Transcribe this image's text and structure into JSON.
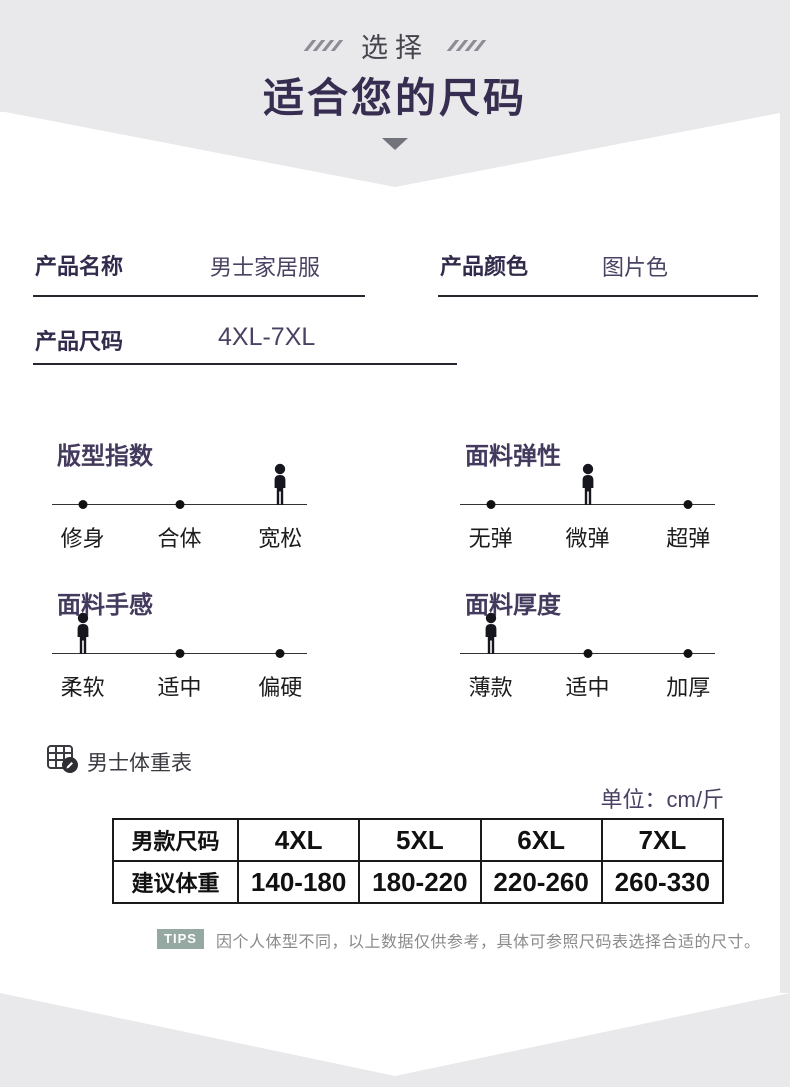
{
  "header": {
    "select_label": "选择",
    "title": "适合您的尺码"
  },
  "product": {
    "rows": [
      {
        "label": "产品名称",
        "value": "男士家居服"
      },
      {
        "label": "产品颜色",
        "value": "图片色"
      },
      {
        "label": "产品尺码",
        "value": "4XL-7XL"
      }
    ]
  },
  "indicators": [
    {
      "title": "版型指数",
      "options": [
        "修身",
        "合体",
        "宽松"
      ],
      "active_index": 2
    },
    {
      "title": "面料弹性",
      "options": [
        "无弹",
        "微弹",
        "超弹"
      ],
      "active_index": 1
    },
    {
      "title": "面料手感",
      "options": [
        "柔软",
        "适中",
        "偏硬"
      ],
      "active_index": 0
    },
    {
      "title": "面料厚度",
      "options": [
        "薄款",
        "适中",
        "加厚"
      ],
      "active_index": 0
    }
  ],
  "weight_table": {
    "section_label": "男士体重表",
    "unit_label": "单位：cm/斤",
    "header_row": {
      "label": "男款尺码",
      "values": [
        "4XL",
        "5XL",
        "6XL",
        "7XL"
      ]
    },
    "weight_row": {
      "label": "建议体重",
      "values": [
        "140-180",
        "180-220",
        "220-260",
        "260-330"
      ]
    }
  },
  "tips": {
    "badge": "TIPS",
    "text": "因个人体型不同，以上数据仅供参考，具体可参照尺码表选择合适的尺寸。"
  },
  "colors": {
    "page_background": "#e9e8ea",
    "accent_purple": "#362d50",
    "tips_badge_green": "#95a9a2",
    "table_border": "#1a1a1a"
  }
}
